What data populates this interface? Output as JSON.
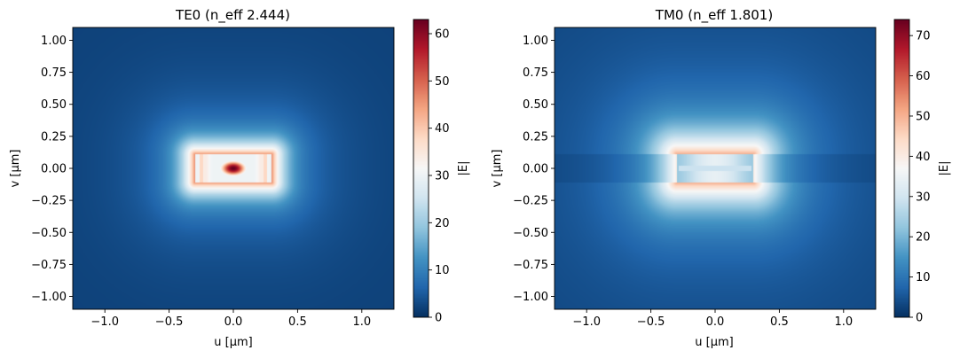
{
  "chart_data": [
    {
      "type": "heatmap",
      "title": "TE0  (n_eff 2.444)",
      "xlabel": "u [µm]",
      "ylabel": "v [µm]",
      "colorbar_label": "|E|",
      "xlim": [
        -1.25,
        1.25
      ],
      "ylim": [
        -1.1,
        1.1
      ],
      "xticks": [
        -1.0,
        -0.5,
        0.0,
        0.5,
        1.0
      ],
      "xtick_labels": [
        "−1.0",
        "−0.5",
        "0.0",
        "0.5",
        "1.0"
      ],
      "yticks": [
        1.0,
        0.75,
        0.5,
        0.25,
        0.0,
        -0.25,
        -0.5,
        -0.75,
        -1.0
      ],
      "ytick_labels": [
        "1.00",
        "0.75",
        "0.50",
        "0.25",
        "0.00",
        "−0.25",
        "−0.50",
        "−0.75",
        "−1.00"
      ],
      "clim": [
        0,
        63
      ],
      "cbar_ticks": [
        0,
        10,
        20,
        30,
        40,
        50,
        60
      ],
      "cbar_tick_labels": [
        "0",
        "10",
        "20",
        "30",
        "40",
        "50",
        "60"
      ],
      "colormap": "RdBu_r",
      "field": {
        "mode": "TE",
        "peak": 63,
        "core_half_width": 0.3,
        "core_half_height": 0.11,
        "decay_length_x": 0.09,
        "decay_length_y": 0.09,
        "background": 2
      }
    },
    {
      "type": "heatmap",
      "title": "TM0  (n_eff 1.801)",
      "xlabel": "u [µm]",
      "ylabel": "v [µm]",
      "colorbar_label": "|E|",
      "xlim": [
        -1.25,
        1.25
      ],
      "ylim": [
        -1.1,
        1.1
      ],
      "xticks": [
        -1.0,
        -0.5,
        0.0,
        0.5,
        1.0
      ],
      "xtick_labels": [
        "−1.0",
        "−0.5",
        "0.0",
        "0.5",
        "1.0"
      ],
      "yticks": [
        1.0,
        0.75,
        0.5,
        0.25,
        0.0,
        -0.25,
        -0.5,
        -0.75,
        -1.0
      ],
      "ytick_labels": [
        "1.00",
        "0.75",
        "0.50",
        "0.25",
        "0.00",
        "−0.25",
        "−0.50",
        "−0.75",
        "−1.00"
      ],
      "clim": [
        0,
        74
      ],
      "cbar_ticks": [
        0,
        10,
        20,
        30,
        40,
        50,
        60,
        70
      ],
      "cbar_tick_labels": [
        "0",
        "10",
        "20",
        "30",
        "40",
        "50",
        "60",
        "70"
      ],
      "colormap": "RdBu_r",
      "field": {
        "mode": "TM",
        "peak": 74,
        "core_half_width": 0.3,
        "core_half_height": 0.11,
        "decay_length_x": 0.16,
        "decay_length_y": 0.16,
        "background": 3
      }
    }
  ]
}
